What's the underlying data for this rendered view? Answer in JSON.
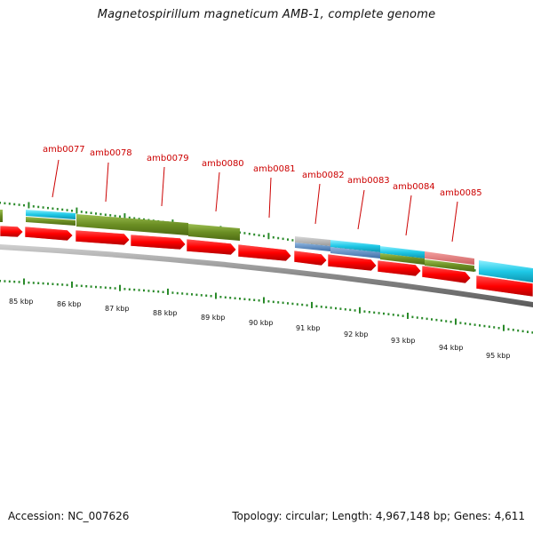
{
  "title": "Magnetospirillum magneticum AMB-1, complete genome",
  "footer": {
    "accession": "Accession: NC_007626",
    "summary": "Topology: circular; Length: 4,967,148 bp; Genes: 4,611"
  },
  "ruler": {
    "labels": [
      "85 kbp",
      "86 kbp",
      "87 kbp",
      "88 kbp",
      "89 kbp",
      "90 kbp",
      "91 kbp",
      "92 kbp",
      "93 kbp",
      "94 kbp",
      "95 kbp"
    ]
  },
  "genes": [
    {
      "name": "amb0077"
    },
    {
      "name": "amb0078"
    },
    {
      "name": "amb0079"
    },
    {
      "name": "amb0080"
    },
    {
      "name": "amb0081"
    },
    {
      "name": "amb0082"
    },
    {
      "name": "amb0083"
    },
    {
      "name": "amb0084"
    },
    {
      "name": "amb0085"
    }
  ],
  "colors": {
    "gene_label": "#cc0000",
    "cds": "#ff0000",
    "cog_cyan": "#1ec8e6",
    "cog_olive": "#6b8e23",
    "cog_blue": "#4a7fb8",
    "cog_pink": "#e07878",
    "cog_grey": "#a8a8a8",
    "tick": "#2a8a2a",
    "backbone": "#808080"
  }
}
